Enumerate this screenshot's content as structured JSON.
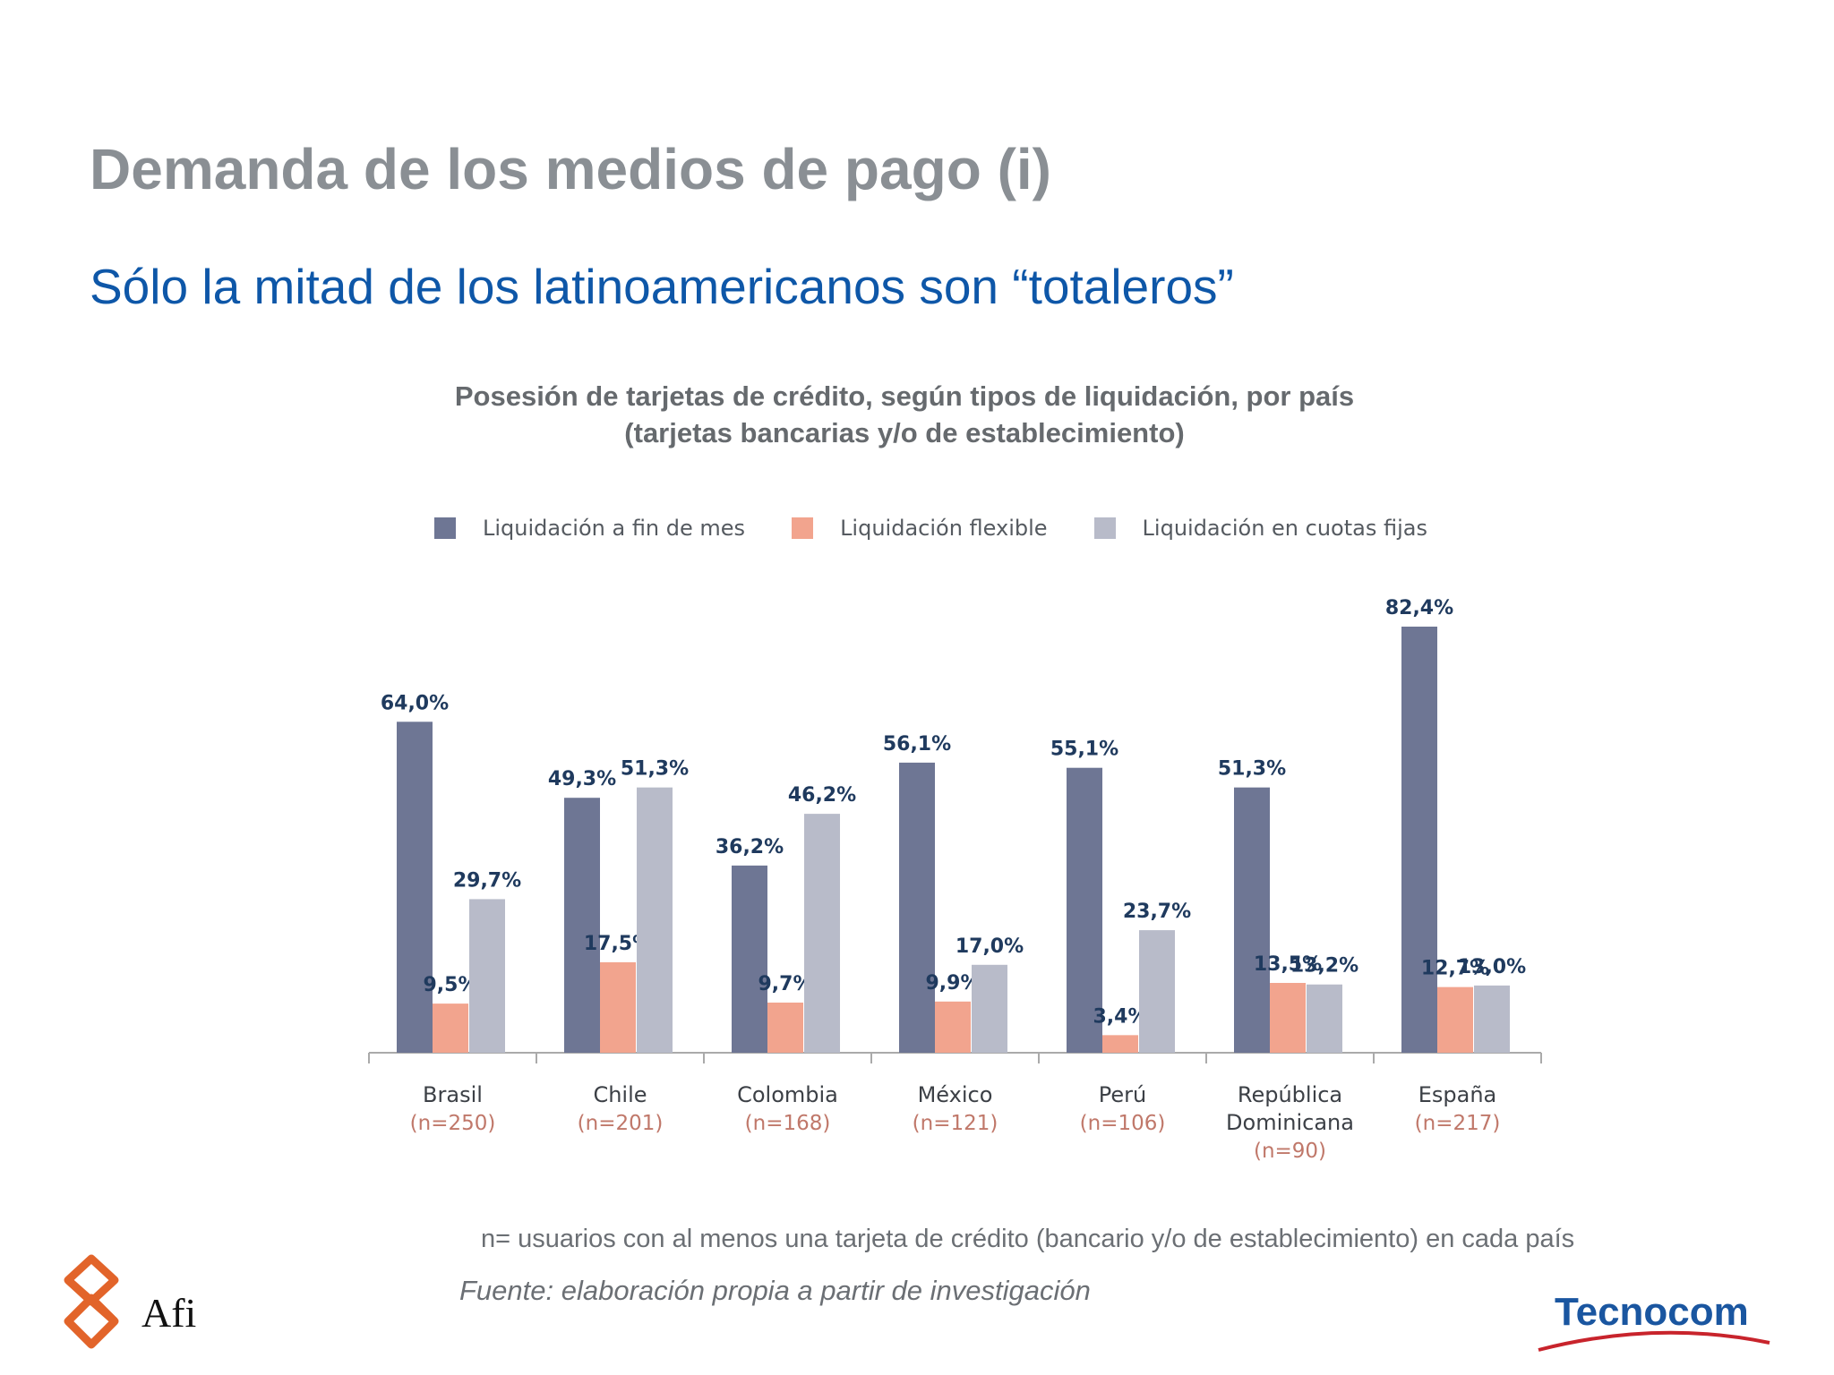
{
  "slide": {
    "title": "Demanda de los medios de pago (i)",
    "subtitle": "Sólo la mitad de los latinoamericanos son “totaleros”"
  },
  "chart_data": {
    "type": "bar",
    "title": "Posesión de tarjetas de crédito, según tipos de liquidación, por país",
    "subtitle": "(tarjetas bancarias y/o de establecimiento)",
    "legend_position": "top",
    "categories": [
      "Brasil",
      "Chile",
      "Colombia",
      "México",
      "Perú",
      "República Dominicana",
      "España"
    ],
    "category_lines": [
      [
        "Brasil"
      ],
      [
        "Chile"
      ],
      [
        "Colombia"
      ],
      [
        "México"
      ],
      [
        "Perú"
      ],
      [
        "República",
        "Dominicana"
      ],
      [
        "España"
      ]
    ],
    "sample_sizes": [
      "(n=250)",
      "(n=201)",
      "(n=168)",
      "(n=121)",
      "(n=106)",
      "(n=90)",
      "(n=217)"
    ],
    "series": [
      {
        "name": "Liquidación a fin de mes",
        "color": "#6e7694",
        "values": [
          64.0,
          49.3,
          36.2,
          56.1,
          55.1,
          51.3,
          82.4
        ],
        "labels": [
          "64,0%",
          "49,3%",
          "36,2%",
          "56,1%",
          "55,1%",
          "51,3%",
          "82,4%"
        ]
      },
      {
        "name": "Liquidación flexible",
        "color": "#f2a48e",
        "values": [
          9.5,
          17.5,
          9.7,
          9.9,
          3.4,
          13.5,
          12.7
        ],
        "labels": [
          "9,5%",
          "17,5%",
          "9,7%",
          "9,9%",
          "3,4%",
          "13,5%",
          "12,7%"
        ]
      },
      {
        "name": "Liquidación en cuotas fijas",
        "color": "#b8bbc9",
        "values": [
          29.7,
          51.3,
          46.2,
          17.0,
          23.7,
          13.2,
          13.0
        ],
        "labels": [
          "29,7%",
          "51,3%",
          "46,2%",
          "17,0%",
          "23,7%",
          "13,2%",
          "13,0%"
        ]
      }
    ],
    "ylim": [
      0,
      82.4
    ],
    "grid": false
  },
  "footer": {
    "note": "n= usuarios con al menos una tarjeta de crédito (bancario y/o de establecimiento) en cada país",
    "source": "Fuente: elaboración propia a partir de investigación",
    "logo_left": "Afi",
    "logo_right": "Tecnocom"
  },
  "colors": {
    "title": "#8a8f94",
    "subtitle": "#0e57a8",
    "value_label": "#1f3a5e",
    "sample_size": "#c0786a",
    "afi_orange": "#e2642a",
    "tecnocom_blue": "#1a56a0",
    "tecnocom_swoosh": "#c8242c"
  }
}
